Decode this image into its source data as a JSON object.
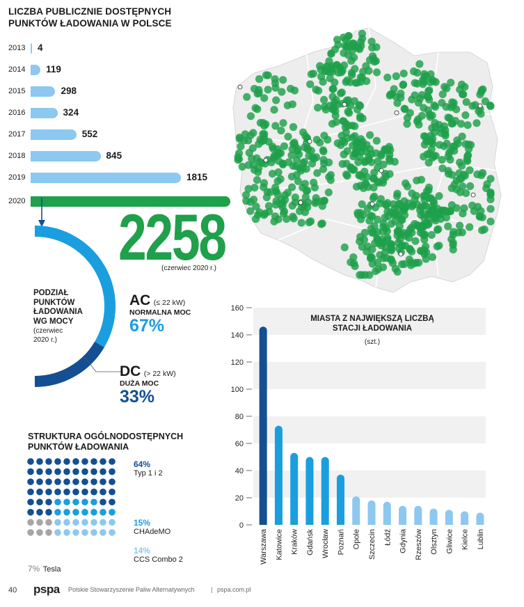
{
  "title": "LICZBA PUBLICZNIE DOSTĘPNYCH\nPUNKTÓW ŁADOWANIA W POLSCE",
  "yearly": {
    "years": [
      "2013",
      "2014",
      "2015",
      "2016",
      "2017",
      "2018",
      "2019",
      "2020"
    ],
    "values": [
      4,
      119,
      298,
      324,
      552,
      845,
      1815,
      2258
    ],
    "value_labels": [
      "4",
      "119",
      "298",
      "324",
      "552",
      "845",
      "1815",
      "2258"
    ],
    "note_2020": "(czerwiec 2020 r.)",
    "color_bar": "#8cc8ef",
    "color_2020": "#1fa04a"
  },
  "power": {
    "title_lines": [
      "PODZIAŁ",
      "PUNKTÓW",
      "ŁADOWANIA",
      "WG MOCY"
    ],
    "subtitle_lines": [
      "(czerwiec",
      "2020 r.)"
    ],
    "ac": {
      "label": "AC",
      "spec": "(≤ 22 kW)",
      "desc": "NORMALNA MOC",
      "pct_label": "67%",
      "pct": 67,
      "color": "#1a9ee0"
    },
    "dc": {
      "label": "DC",
      "spec": "(> 22 kW)",
      "desc": "DUŻA MOC",
      "pct_label": "33%",
      "pct": 33,
      "color": "#134f92"
    }
  },
  "structure": {
    "title": "STRUKTURA OGÓLNODOSTĘPNYCH\nPUNKTÓW ŁADOWANIA",
    "items": [
      {
        "pct_label": "64%",
        "name": "Typ 1 i 2",
        "color": "#134f92"
      },
      {
        "pct_label": "15%",
        "name": "CHAdeMO",
        "color": "#1a9ee0"
      },
      {
        "pct_label": "14%",
        "name": "CCS Combo 2",
        "color": "#8cc8ef"
      },
      {
        "pct_label": "7%",
        "name": "Tesla",
        "color": "#a6a6a6"
      }
    ]
  },
  "chart_data": {
    "type": "bar",
    "title": "MIASTA Z NAJWIĘKSZĄ LICZBĄ\nSTACJI ŁADOWANIA",
    "subtitle": "(szt.)",
    "categories": [
      "Warszawa",
      "Katowice",
      "Kraków",
      "Gdańsk",
      "Wrocław",
      "Poznań",
      "Opole",
      "Szczecin",
      "Łódź",
      "Gdynia",
      "Rzeszów",
      "Olsztyn",
      "Gliwice",
      "Kielce",
      "Lublin"
    ],
    "values": [
      146,
      73,
      53,
      50,
      50,
      37,
      21,
      18,
      17,
      14,
      14,
      12,
      11,
      10,
      9
    ],
    "ylim": [
      0,
      160
    ],
    "yticks": [
      "0",
      "20",
      "40",
      "60",
      "80",
      "100",
      "120",
      "140",
      "160"
    ],
    "grid": "horizontal bands",
    "colors": {
      "top1": "#134f92",
      "top2_6": "#1a9ee0",
      "rest": "#8cc8ef"
    }
  },
  "footer": {
    "page": "40",
    "logo": "pspa",
    "org": "Polskie Stowarzyszenie Paliw Alternatywnych",
    "sep": "|",
    "url": "pspa.com.pl"
  }
}
